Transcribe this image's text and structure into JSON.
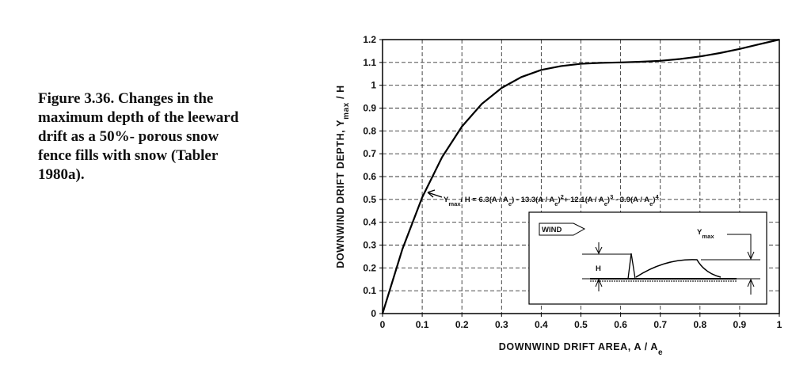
{
  "caption": [
    "Figure 3.36.  Changes in the",
    "maximum depth of the leeward",
    "drift as a 50%- porous snow",
    "fence fills with snow (Tabler",
    "1980a)."
  ],
  "chart_data": {
    "type": "line",
    "xlabel": [
      {
        "t": "DOWNWIND DRIFT AREA, A / A"
      },
      {
        "t": "e",
        "s": "sub"
      }
    ],
    "ylabel": [
      {
        "t": "DOWNWIND DRIFT DEPTH, Y"
      },
      {
        "t": "max",
        "s": "sub"
      },
      {
        "t": " / H"
      }
    ],
    "annotation": [
      {
        "t": "Y"
      },
      {
        "t": "max",
        "s": "sub"
      },
      {
        "t": "/ H = 6.3(A / A"
      },
      {
        "t": "e",
        "s": "sub"
      },
      {
        "t": ") - 13.3(A / A"
      },
      {
        "t": "e",
        "s": "sub"
      },
      {
        "t": ")"
      },
      {
        "t": "2",
        "s": "sup"
      },
      {
        "t": "+ 12.1(A / A"
      },
      {
        "t": "e",
        "s": "sub"
      },
      {
        "t": ")"
      },
      {
        "t": "3",
        "s": "sup"
      },
      {
        "t": " - 3.9(A / A"
      },
      {
        "t": "e",
        "s": "sub"
      },
      {
        "t": ")"
      },
      {
        "t": "4",
        "s": "sup"
      }
    ],
    "inset": {
      "wind": "WIND",
      "h": "H",
      "ymax": [
        {
          "t": "Y"
        },
        {
          "t": "max",
          "s": "sub"
        }
      ]
    },
    "x": [
      0,
      0.05,
      0.1,
      0.15,
      0.2,
      0.25,
      0.3,
      0.35,
      0.4,
      0.45,
      0.5,
      0.55,
      0.6,
      0.65,
      0.7,
      0.75,
      0.8,
      0.85,
      0.9,
      0.95,
      1
    ],
    "values": [
      0,
      0.282,
      0.509,
      0.685,
      0.819,
      0.918,
      0.988,
      1.036,
      1.067,
      1.084,
      1.094,
      1.098,
      1.1,
      1.103,
      1.107,
      1.115,
      1.126,
      1.141,
      1.159,
      1.18,
      1.2
    ],
    "color": "#000000",
    "xlim": [
      0,
      1
    ],
    "xticks": [
      0,
      0.1,
      0.2,
      0.3,
      0.4,
      0.5,
      0.6,
      0.7,
      0.8,
      0.9,
      1
    ],
    "ylim": [
      0,
      1.2
    ],
    "yticks": [
      0,
      0.1,
      0.2,
      0.3,
      0.4,
      0.5,
      0.6,
      0.7,
      0.8,
      0.9,
      1,
      1.1,
      1.2
    ],
    "grid": true
  }
}
